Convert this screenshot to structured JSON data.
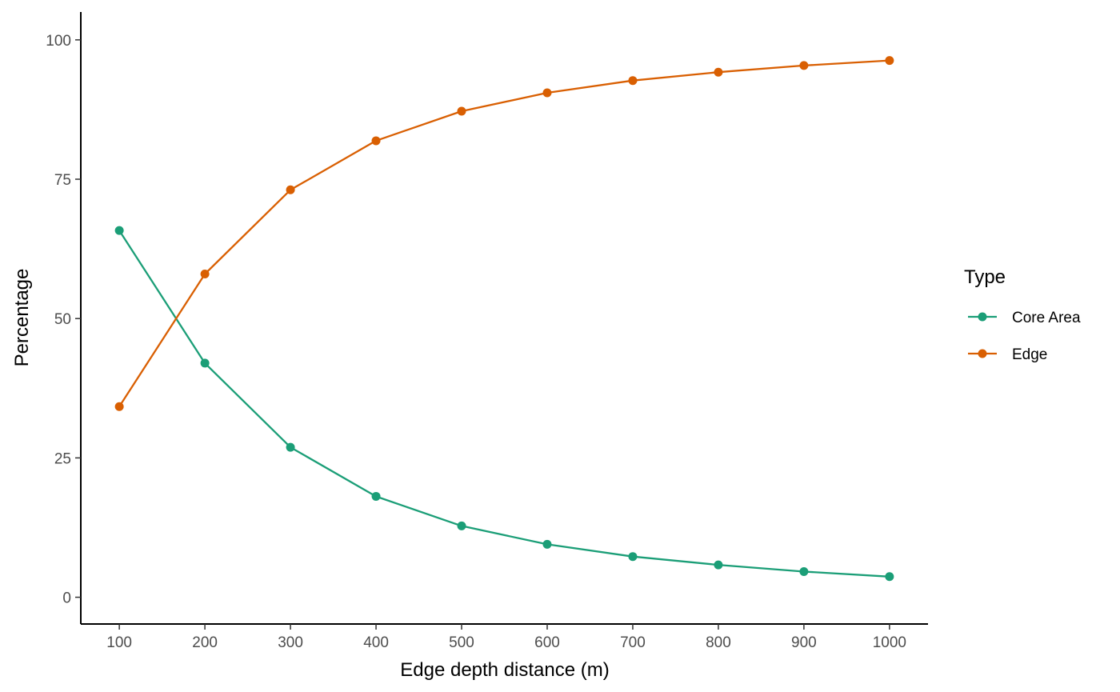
{
  "chart_data": {
    "type": "line",
    "xlabel": "Edge depth distance (m)",
    "ylabel": "Percentage",
    "x": [
      100,
      200,
      300,
      400,
      500,
      600,
      700,
      800,
      900,
      1000
    ],
    "xticks": [
      100,
      200,
      300,
      400,
      500,
      600,
      700,
      800,
      900,
      1000
    ],
    "yticks": [
      0,
      25,
      50,
      75,
      100
    ],
    "xlim": [
      55,
      1045
    ],
    "ylim": [
      -4.8,
      105
    ],
    "grid": false,
    "legend": {
      "title": "Type",
      "position": "right"
    },
    "series": [
      {
        "name": "Core Area",
        "color": "#1b9e77",
        "values": [
          65.8,
          42.0,
          26.9,
          18.1,
          12.8,
          9.5,
          7.3,
          5.8,
          4.6,
          3.7
        ]
      },
      {
        "name": "Edge",
        "color": "#d95f02",
        "values": [
          34.2,
          58.0,
          73.1,
          81.9,
          87.2,
          90.5,
          92.7,
          94.2,
          95.4,
          96.3
        ]
      }
    ]
  }
}
